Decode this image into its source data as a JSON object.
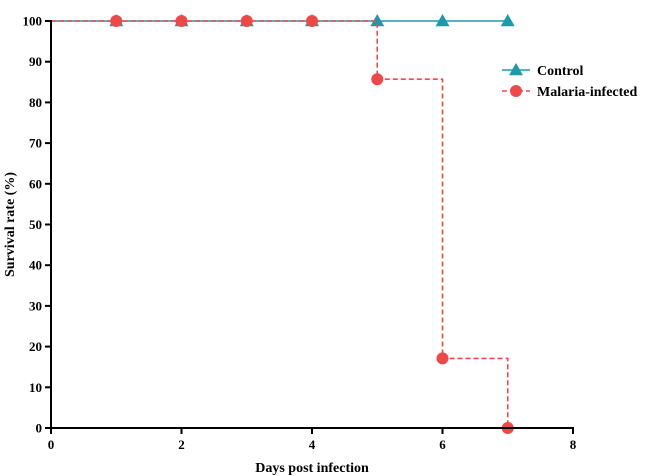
{
  "chart_data": {
    "type": "line",
    "step": true,
    "xlabel": "Days post infection",
    "ylabel": "Survival rate (%)",
    "xlim": [
      0,
      8
    ],
    "ylim": [
      0,
      100
    ],
    "xticks": [
      0,
      2,
      4,
      6,
      8
    ],
    "yticks": [
      0,
      10,
      20,
      30,
      40,
      50,
      60,
      70,
      80,
      90,
      100
    ],
    "grid": false,
    "legend_position": "top-right",
    "series": [
      {
        "name": "Control",
        "marker": "triangle",
        "line_style": "solid",
        "color": "#1a9aaa",
        "x": [
          0,
          1,
          2,
          3,
          4,
          5,
          6,
          7
        ],
        "y": [
          100,
          100,
          100,
          100,
          100,
          100,
          100,
          100
        ]
      },
      {
        "name": "Malaria-infected",
        "marker": "circle",
        "line_style": "dashed",
        "color": "#f04848",
        "x": [
          0,
          1,
          2,
          3,
          4,
          5,
          6,
          7
        ],
        "y": [
          100,
          100,
          100,
          100,
          100,
          85.7,
          17.1,
          0
        ]
      }
    ]
  }
}
